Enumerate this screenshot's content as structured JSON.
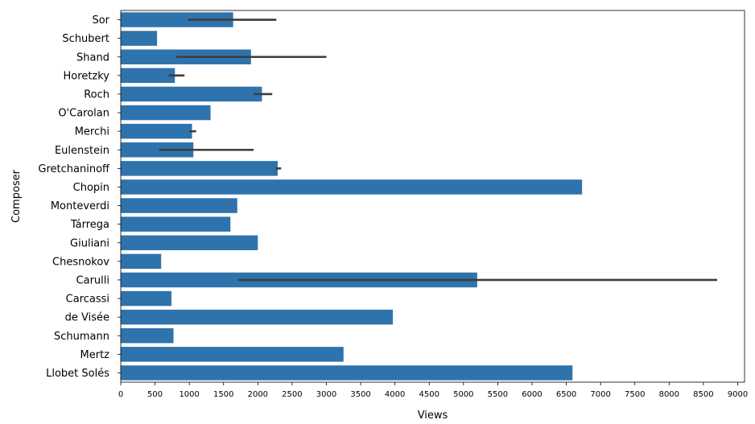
{
  "chart_data": {
    "type": "bar",
    "orientation": "horizontal",
    "xlabel": "Views",
    "ylabel": "Composer",
    "xlim": [
      0,
      9100
    ],
    "xticks": [
      0,
      500,
      1000,
      1500,
      2000,
      2500,
      3000,
      3500,
      4000,
      4500,
      5000,
      5500,
      6000,
      6500,
      7000,
      7500,
      8000,
      8500,
      9000
    ],
    "grid": false,
    "bar_color": "#2f73ad",
    "errorbar_color": "#3d3d3d",
    "categories": [
      "Sor",
      "Schubert",
      "Shand",
      "Horetzky",
      "Roch",
      "O'Carolan",
      "Merchi",
      "Eulenstein",
      "Gretchaninoff",
      "Chopin",
      "Monteverdi",
      "Tárrega",
      "Giuliani",
      "Chesnokov",
      "Carulli",
      "Carcassi",
      "de Visée",
      "Schumann",
      "Mertz",
      "Llobet Solés"
    ],
    "values": [
      1640,
      530,
      1900,
      790,
      2060,
      1310,
      1040,
      1060,
      2290,
      6730,
      1700,
      1600,
      2000,
      590,
      5200,
      740,
      3970,
      770,
      3250,
      6590
    ],
    "error_low": [
      980,
      null,
      810,
      700,
      1940,
      null,
      1000,
      560,
      2260,
      null,
      null,
      null,
      null,
      null,
      1710,
      null,
      null,
      null,
      null,
      null
    ],
    "error_high": [
      2270,
      null,
      3000,
      930,
      2210,
      null,
      1100,
      1940,
      2340,
      null,
      null,
      null,
      null,
      null,
      8700,
      null,
      null,
      null,
      null,
      null
    ]
  }
}
